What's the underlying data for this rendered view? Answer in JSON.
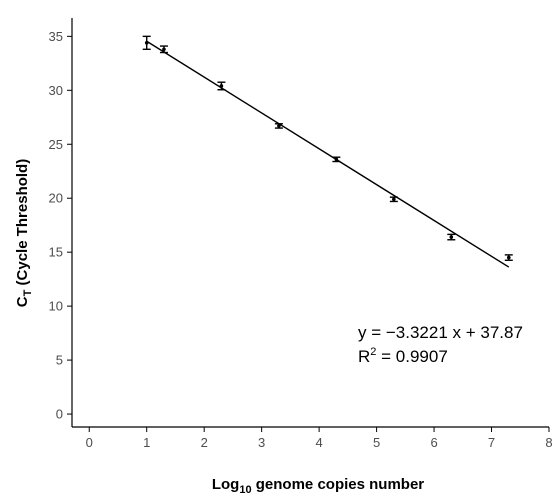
{
  "chart_data": {
    "type": "scatter",
    "title": "",
    "xlabel": "Log10 genome copies number",
    "xlabel_parts": {
      "main": "Log",
      "subscript": "10",
      "rest": " genome copies number"
    },
    "ylabel": "CT (Cycle Threshold)",
    "ylabel_parts": {
      "main": "C",
      "subscript": "T",
      "rest": "  (Cycle Threshold)"
    },
    "xlim": [
      -0.3,
      8.0
    ],
    "ylim": [
      -1.2,
      36.7
    ],
    "xticks": [
      0,
      1,
      2,
      3,
      4,
      5,
      6,
      7,
      8
    ],
    "yticks": [
      0,
      5,
      10,
      15,
      20,
      25,
      30,
      35
    ],
    "grid": false,
    "series": [
      {
        "x": [
          1.0,
          1.3,
          2.3,
          3.3,
          4.3,
          5.3,
          6.3,
          7.3
        ],
        "y": [
          34.4,
          33.8,
          30.4,
          26.7,
          23.6,
          19.9,
          16.4,
          14.5
        ],
        "err": [
          0.6,
          0.3,
          0.35,
          0.2,
          0.2,
          0.2,
          0.25,
          0.25
        ]
      }
    ],
    "fit": {
      "slope": -3.3221,
      "intercept": 37.87,
      "x_range": [
        1.0,
        7.3
      ]
    },
    "annotations": {
      "equation": "y = −3.3221 x + 37.87",
      "r2_label": "R",
      "r2_exponent": "2",
      "r2_value": " = 0.9907"
    },
    "colors": {
      "points": "#000000",
      "line": "#000000",
      "axis": "#000000",
      "tick_text": "#4d4d4d"
    }
  }
}
